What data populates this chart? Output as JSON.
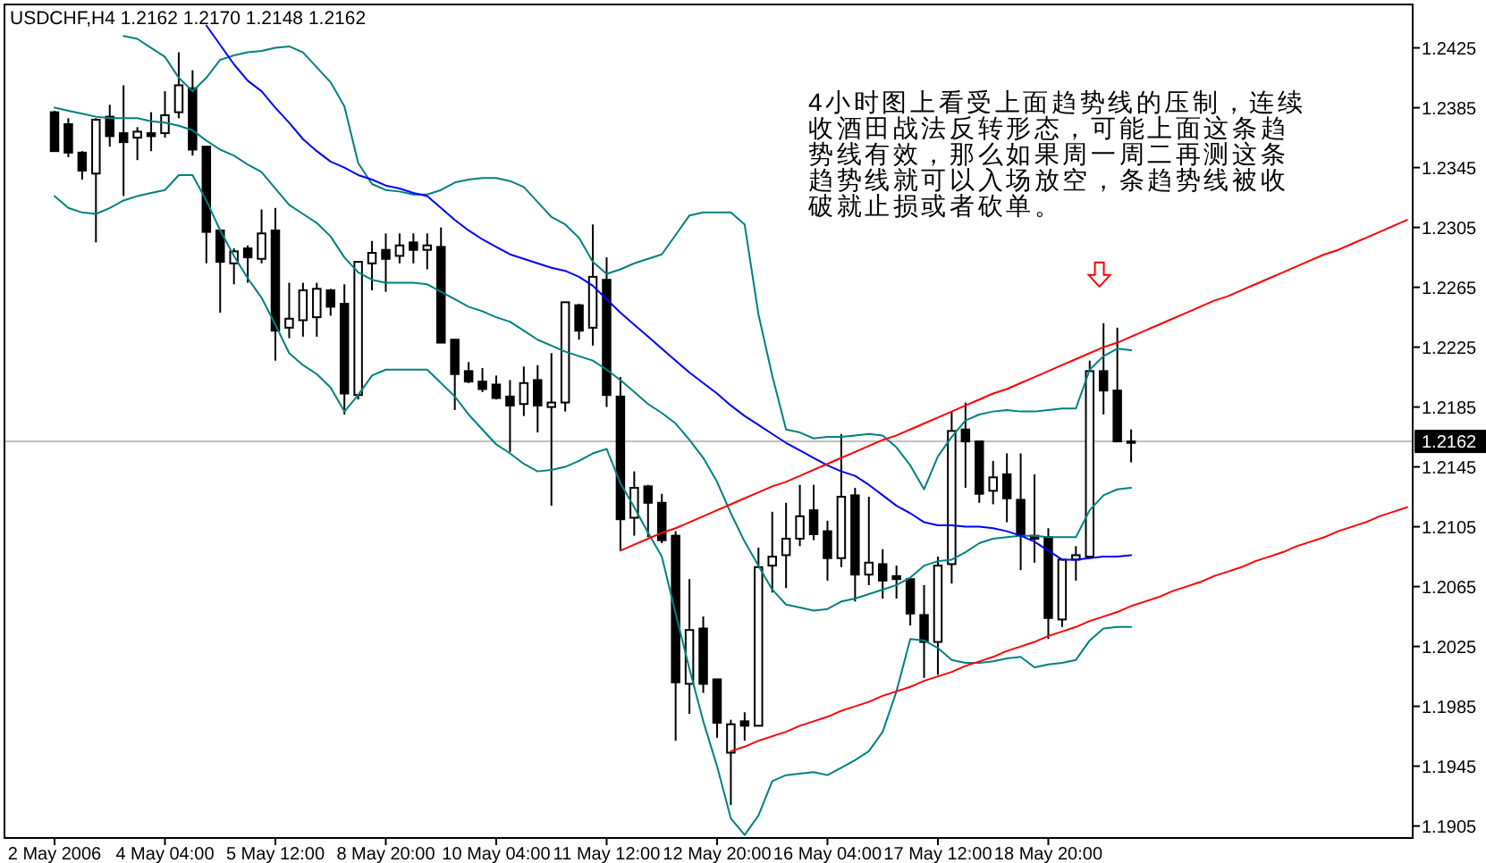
{
  "chart_data": {
    "type": "candlestick",
    "title": "USDCHF,H4  1.2162 1.2170 1.2148 1.2162",
    "color": "#000000",
    "categories": [
      "2 May 2006",
      null,
      null,
      null,
      null,
      null,
      null,
      null,
      "4 May 04:00",
      null,
      null,
      null,
      null,
      null,
      null,
      null,
      "5 May 12:00",
      null,
      null,
      null,
      null,
      null,
      null,
      null,
      "8 May 20:00",
      null,
      null,
      null,
      null,
      null,
      null,
      null,
      "10 May 04:00",
      null,
      null,
      null,
      null,
      null,
      null,
      null,
      "11 May 12:00",
      null,
      null,
      null,
      null,
      null,
      null,
      null,
      "12 May 20:00",
      null,
      null,
      null,
      null,
      null,
      null,
      null,
      "16 May 04:00",
      null,
      null,
      null,
      null,
      null,
      null,
      null,
      "17 May 12:00",
      null,
      null,
      null,
      null,
      null,
      null,
      null,
      "18 May 20:00",
      null,
      null,
      null,
      null,
      null,
      null,
      null,
      null,
      null,
      null,
      null,
      null,
      null,
      null,
      null,
      null,
      null,
      null,
      null,
      null,
      null,
      null,
      null,
      null,
      null,
      null
    ],
    "ylim": [
      1.1897,
      1.2454
    ],
    "yticks": [
      1.1905,
      1.1945,
      1.1985,
      1.2025,
      1.2065,
      1.2105,
      1.2145,
      1.2185,
      1.2225,
      1.2265,
      1.2305,
      1.2345,
      1.2385,
      1.2425
    ],
    "ohlc": [
      [
        1.2382,
        1.2383,
        1.2356,
        1.2356
      ],
      [
        1.2374,
        1.2378,
        1.2352,
        1.2355
      ],
      [
        1.2355,
        1.2356,
        1.2337,
        1.2343
      ],
      [
        1.2341,
        1.2378,
        1.2295,
        1.2377
      ],
      [
        1.2379,
        1.2387,
        1.2359,
        1.2366
      ],
      [
        1.2368,
        1.24,
        1.2326,
        1.2362
      ],
      [
        1.2365,
        1.2372,
        1.235,
        1.2369
      ],
      [
        1.2368,
        1.2382,
        1.2356,
        1.2366
      ],
      [
        1.2368,
        1.2396,
        1.2365,
        1.238
      ],
      [
        1.2382,
        1.2422,
        1.2378,
        1.24
      ],
      [
        1.2398,
        1.241,
        1.2353,
        1.2357
      ],
      [
        1.2359,
        1.2359,
        1.2281,
        1.2302
      ],
      [
        1.2303,
        1.2303,
        1.2248,
        1.2282
      ],
      [
        1.2281,
        1.2291,
        1.2267,
        1.2289
      ],
      [
        1.2291,
        1.2293,
        1.2268,
        1.2285
      ],
      [
        1.2284,
        1.2317,
        1.2281,
        1.2301
      ],
      [
        1.2303,
        1.2318,
        1.2216,
        1.2236
      ],
      [
        1.2238,
        1.2268,
        1.2231,
        1.2244
      ],
      [
        1.2243,
        1.2268,
        1.2232,
        1.2263
      ],
      [
        1.2245,
        1.2268,
        1.2232,
        1.2264
      ],
      [
        1.2263,
        1.2264,
        1.2246,
        1.2252
      ],
      [
        1.2254,
        1.2267,
        1.218,
        1.2194
      ],
      [
        1.2193,
        1.2282,
        1.219,
        1.2282
      ],
      [
        1.2281,
        1.2296,
        1.2263,
        1.2288
      ],
      [
        1.229,
        1.2301,
        1.2262,
        1.2284
      ],
      [
        1.2286,
        1.2301,
        1.2281,
        1.2293
      ],
      [
        1.2295,
        1.2301,
        1.2281,
        1.229
      ],
      [
        1.229,
        1.2301,
        1.2277,
        1.2293
      ],
      [
        1.2292,
        1.2305,
        1.2228,
        1.2228
      ],
      [
        1.223,
        1.223,
        1.2183,
        1.2207
      ],
      [
        1.2209,
        1.2215,
        1.2201,
        1.2202
      ],
      [
        1.2202,
        1.2211,
        1.2195,
        1.2197
      ],
      [
        1.22,
        1.2206,
        1.219,
        1.2191
      ],
      [
        1.2192,
        1.2203,
        1.2155,
        1.2186
      ],
      [
        1.2187,
        1.2212,
        1.2179,
        1.2201
      ],
      [
        1.2203,
        1.2213,
        1.2168,
        1.2186
      ],
      [
        1.2185,
        1.2221,
        1.2119,
        1.2188
      ],
      [
        1.2188,
        1.2255,
        1.2182,
        1.2255
      ],
      [
        1.2253,
        1.2254,
        1.223,
        1.2236
      ],
      [
        1.2238,
        1.2307,
        1.2226,
        1.2272
      ],
      [
        1.227,
        1.2285,
        1.2185,
        1.2193
      ],
      [
        1.2192,
        1.2205,
        1.2089,
        1.211
      ],
      [
        1.2111,
        1.2142,
        1.2099,
        1.2131
      ],
      [
        1.2132,
        1.2133,
        1.2098,
        1.2121
      ],
      [
        1.2121,
        1.2127,
        1.2094,
        1.2096
      ],
      [
        1.2099,
        1.2102,
        1.1962,
        1.2001
      ],
      [
        1.2,
        1.207,
        1.198,
        1.2036
      ],
      [
        1.2037,
        1.2045,
        1.1994,
        1.2
      ],
      [
        1.2003,
        1.2003,
        1.1964,
        1.1974
      ],
      [
        1.1954,
        1.1976,
        1.1919,
        1.1973
      ],
      [
        1.1975,
        1.1981,
        1.1962,
        1.1972
      ],
      [
        1.1972,
        1.2091,
        1.1972,
        1.2078
      ],
      [
        1.2079,
        1.2115,
        1.2061,
        1.2085
      ],
      [
        1.2086,
        1.2121,
        1.2064,
        1.2097
      ],
      [
        1.2097,
        1.2133,
        1.2092,
        1.2112
      ],
      [
        1.2116,
        1.2133,
        1.2096,
        1.21
      ],
      [
        1.2102,
        1.2109,
        1.2069,
        1.2084
      ],
      [
        1.2084,
        1.2167,
        1.2078,
        1.2125
      ],
      [
        1.2126,
        1.2131,
        1.2055,
        1.2073
      ],
      [
        1.2073,
        1.2125,
        1.2066,
        1.2081
      ],
      [
        1.208,
        1.209,
        1.2057,
        1.2069
      ],
      [
        1.2072,
        1.2079,
        1.2057,
        1.207
      ],
      [
        1.207,
        1.207,
        1.2039,
        1.2047
      ],
      [
        1.2046,
        1.2066,
        1.2004,
        1.2028
      ],
      [
        1.2028,
        1.2085,
        1.2006,
        1.2079
      ],
      [
        1.208,
        1.2182,
        1.2067,
        1.2169
      ],
      [
        1.217,
        1.2188,
        1.2131,
        1.2162
      ],
      [
        1.2162,
        1.2162,
        1.2121,
        1.2127
      ],
      [
        1.2129,
        1.2149,
        1.212,
        1.2138
      ],
      [
        1.214,
        1.2154,
        1.2108,
        1.2124
      ],
      [
        1.2123,
        1.2154,
        1.2076,
        1.2099
      ],
      [
        1.2099,
        1.214,
        1.2081,
        1.2097
      ],
      [
        1.2098,
        1.2104,
        1.203,
        1.2044
      ],
      [
        1.2043,
        1.2083,
        1.2038,
        1.2083
      ],
      [
        1.2083,
        1.2092,
        1.2069,
        1.2086
      ],
      [
        1.2085,
        1.2216,
        1.2084,
        1.2209
      ],
      [
        1.2209,
        1.2241,
        1.218,
        1.2196
      ],
      [
        1.2196,
        1.2238,
        1.2162,
        1.2162
      ],
      [
        1.2162,
        1.217,
        1.2148,
        1.2162
      ],
      null,
      null,
      null,
      null,
      null,
      null,
      null,
      null,
      null,
      null,
      null,
      null,
      null,
      null,
      null,
      null,
      null,
      null,
      null,
      null
    ],
    "series": [
      {
        "type": "line",
        "color": "#008080",
        "values": [
          null,
          null,
          null,
          null,
          null,
          1.2433,
          1.2431,
          1.2425,
          1.2419,
          1.2405,
          1.2396,
          1.2405,
          1.2417,
          1.242,
          1.2422,
          1.2423,
          1.2425,
          1.2426,
          1.2422,
          1.2412,
          1.2402,
          1.2386,
          1.2348,
          1.2334,
          1.233,
          1.2329,
          1.2327,
          1.2327,
          1.233,
          1.2335,
          1.2337,
          1.2338,
          1.2338,
          1.2336,
          1.2332,
          1.2322,
          1.2312,
          1.2307,
          1.2298,
          1.2282,
          1.2274,
          1.2277,
          1.2281,
          1.2284,
          1.2287,
          1.23,
          1.2313,
          1.2315,
          1.2315,
          1.2315,
          1.2307,
          1.2247,
          1.2206,
          1.217,
          1.2168,
          1.2164,
          1.2165,
          1.2165,
          1.2166,
          1.2167,
          1.2166,
          1.2158,
          1.2146,
          1.213,
          1.2152,
          1.2165,
          1.2176,
          1.218,
          1.2182,
          1.2183,
          1.2182,
          1.2182,
          1.2183,
          1.2184,
          1.2184,
          1.221,
          1.2219,
          1.2224,
          1.2223,
          null,
          null,
          null,
          null,
          null,
          null,
          null,
          null,
          null,
          null,
          null,
          null,
          null,
          null,
          null,
          null,
          null,
          null,
          null,
          null
        ]
      },
      {
        "type": "line",
        "color": "#008080",
        "values": [
          1.2385,
          1.2383,
          1.2381,
          1.2379,
          1.2378,
          1.2378,
          1.2378,
          1.2376,
          1.2375,
          1.2373,
          1.237,
          1.2363,
          1.2357,
          1.2353,
          1.2347,
          1.2342,
          1.2331,
          1.232,
          1.2314,
          1.2308,
          1.2299,
          1.2285,
          1.2275,
          1.227,
          1.2268,
          1.2268,
          1.2268,
          1.2267,
          1.2262,
          1.2257,
          1.2252,
          1.2249,
          1.2245,
          1.2242,
          1.2236,
          1.223,
          1.2226,
          1.2222,
          1.2219,
          1.2216,
          1.221,
          1.2203,
          1.2195,
          1.2187,
          1.2181,
          1.2174,
          1.2163,
          1.2151,
          1.2135,
          1.2114,
          1.2095,
          1.2079,
          1.2063,
          1.2053,
          1.2051,
          1.2049,
          1.205,
          1.2055,
          1.2057,
          1.206,
          1.2063,
          1.2066,
          1.2071,
          1.2079,
          1.2082,
          1.2083,
          1.2088,
          1.2094,
          1.2097,
          1.2098,
          1.2099,
          1.2099,
          1.2098,
          1.2098,
          1.2098,
          1.2116,
          1.2126,
          1.213,
          1.2131,
          null,
          null,
          null,
          null,
          null,
          null,
          null,
          null,
          null,
          null,
          null,
          null,
          null,
          null,
          null,
          null,
          null,
          null,
          null,
          null
        ]
      },
      {
        "type": "line",
        "color": "#008080",
        "values": [
          1.2326,
          1.2318,
          1.2315,
          1.2314,
          1.2318,
          1.2323,
          1.2326,
          1.2328,
          1.233,
          1.234,
          1.234,
          1.2323,
          1.2303,
          1.2286,
          1.2271,
          1.2258,
          1.224,
          1.2221,
          1.2213,
          1.2207,
          1.2198,
          1.2182,
          1.2193,
          1.2206,
          1.221,
          1.221,
          1.221,
          1.221,
          1.2201,
          1.2192,
          1.218,
          1.217,
          1.216,
          1.2154,
          1.2147,
          1.2142,
          1.2143,
          1.2145,
          1.2149,
          1.2154,
          1.2157,
          1.2134,
          1.2118,
          1.2101,
          1.2085,
          1.2047,
          1.201,
          1.1975,
          1.1945,
          1.191,
          1.1899,
          1.1912,
          1.1935,
          1.1939,
          1.194,
          1.1941,
          1.1939,
          1.1944,
          1.1949,
          1.1955,
          1.1968,
          1.1995,
          1.203,
          1.2029,
          1.2024,
          1.2016,
          1.2014,
          1.2014,
          1.2015,
          1.2017,
          1.2018,
          1.2011,
          1.2013,
          1.2014,
          1.2016,
          1.2029,
          1.2037,
          1.2038,
          1.2038,
          null,
          null,
          null,
          null,
          null,
          null,
          null,
          null,
          null,
          null,
          null,
          null,
          null,
          null,
          null,
          null,
          null,
          null,
          null,
          null
        ]
      },
      {
        "type": "line",
        "color": "#0000ff",
        "values": [
          null,
          null,
          null,
          null,
          null,
          null,
          null,
          null,
          null,
          null,
          null,
          1.244,
          1.2427,
          1.2414,
          1.2403,
          1.2396,
          1.2385,
          1.2375,
          1.2364,
          1.2356,
          1.2349,
          1.2345,
          1.234,
          1.2337,
          1.2333,
          1.2331,
          1.2328,
          1.2326,
          1.2318,
          1.231,
          1.2303,
          1.2297,
          1.2292,
          1.2287,
          1.2284,
          1.2281,
          1.2278,
          1.2276,
          1.2272,
          1.2266,
          1.2257,
          1.2248,
          1.224,
          1.2232,
          1.2224,
          1.2216,
          1.2208,
          1.2201,
          1.2194,
          1.2186,
          1.2179,
          1.2173,
          1.2167,
          1.2161,
          1.2156,
          1.2151,
          1.2146,
          1.2142,
          1.2139,
          1.2133,
          1.2126,
          1.2119,
          1.2114,
          1.2108,
          1.2106,
          1.2106,
          1.2105,
          1.2105,
          1.2104,
          1.2102,
          1.2099,
          1.2095,
          1.2089,
          1.2083,
          1.2083,
          1.2084,
          1.2085,
          1.2085,
          1.2086,
          null,
          null,
          null,
          null,
          null,
          null,
          null,
          null,
          null,
          null,
          null,
          null,
          null,
          null,
          null,
          null,
          null,
          null,
          null,
          null
        ]
      },
      {
        "type": "line",
        "color": "#ff0000",
        "values": [
          null,
          null,
          null,
          null,
          null,
          null,
          null,
          null,
          null,
          null,
          null,
          null,
          null,
          null,
          null,
          null,
          null,
          null,
          null,
          null,
          null,
          null,
          null,
          null,
          null,
          null,
          null,
          null,
          null,
          null,
          null,
          null,
          null,
          null,
          null,
          null,
          null,
          null,
          null,
          null,
          null,
          1.2089,
          1.2093,
          1.2097,
          1.2101,
          1.2104,
          1.2108,
          1.2112,
          1.2116,
          1.212,
          1.2124,
          1.2128,
          1.2132,
          1.2135,
          1.2139,
          1.2143,
          1.2147,
          1.2151,
          1.2155,
          1.2159,
          1.2163,
          1.2166,
          1.217,
          1.2174,
          1.2178,
          1.2182,
          1.2186,
          1.219,
          1.2194,
          1.2197,
          1.2201,
          1.2205,
          1.2209,
          1.2213,
          1.2217,
          1.2221,
          1.2225,
          1.2228,
          1.2232,
          1.2236,
          1.224,
          1.2244,
          1.2248,
          1.2252,
          1.2256,
          1.2259,
          1.2263,
          1.2267,
          1.2271,
          1.2275,
          1.2279,
          1.2283,
          1.2287,
          1.229,
          1.2294,
          1.2298,
          1.2302,
          1.2306,
          1.231
        ]
      },
      {
        "type": "line",
        "color": "#ff0000",
        "values": [
          null,
          null,
          null,
          null,
          null,
          null,
          null,
          null,
          null,
          null,
          null,
          null,
          null,
          null,
          null,
          null,
          null,
          null,
          null,
          null,
          null,
          null,
          null,
          null,
          null,
          null,
          null,
          null,
          null,
          null,
          null,
          null,
          null,
          null,
          null,
          null,
          null,
          null,
          null,
          null,
          null,
          null,
          null,
          null,
          null,
          null,
          null,
          null,
          null,
          1.1955,
          1.1958,
          1.1962,
          1.1965,
          1.1968,
          1.1972,
          1.1975,
          1.1978,
          1.1982,
          1.1985,
          1.1988,
          1.1992,
          1.1995,
          1.1998,
          1.2002,
          1.2005,
          1.2008,
          1.2012,
          1.2015,
          1.2018,
          1.2022,
          1.2025,
          1.2028,
          1.2032,
          1.2035,
          1.2038,
          1.2042,
          1.2045,
          1.2048,
          1.2052,
          1.2055,
          1.2058,
          1.2062,
          1.2065,
          1.2068,
          1.2072,
          1.2075,
          1.2078,
          1.2082,
          1.2085,
          1.2088,
          1.2092,
          1.2095,
          1.2098,
          1.2102,
          1.2105,
          1.2108,
          1.2112,
          1.2115,
          1.2118
        ]
      }
    ],
    "ref_lines": [
      {
        "axis": "y",
        "value": 1.2162,
        "label": "1.2162",
        "color": "#c0c0c0"
      }
    ],
    "annotations": [
      "4小时图上看受上面趋势线的压制，连续收酒田战法反转形态，可能上面这条趋势线有效，那么如果周一周二再测这条趋势线就可以入场放空，条趋势线被收破就止损或者砍单。"
    ]
  }
}
